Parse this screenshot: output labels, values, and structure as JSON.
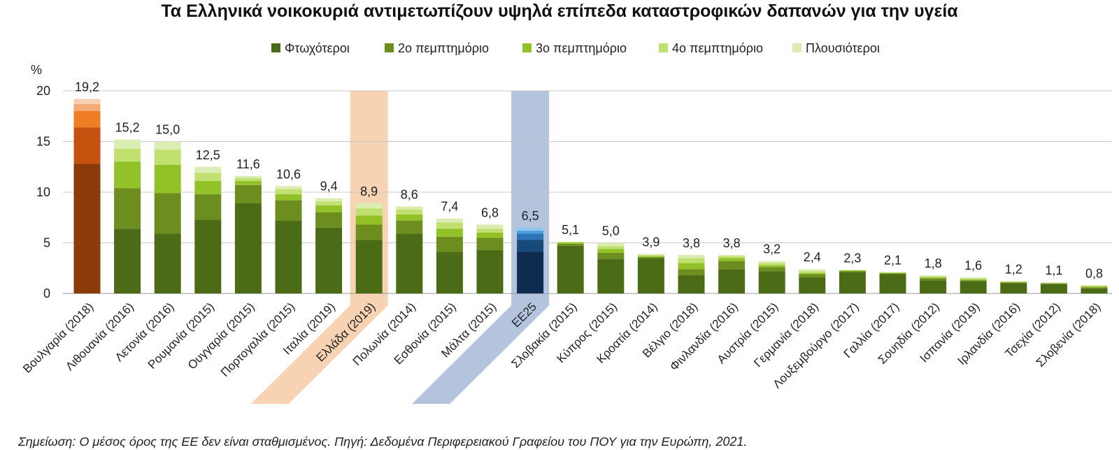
{
  "chart_data": {
    "type": "bar",
    "stacked": true,
    "title": "Τα Ελληνικά νοικοκυριά αντιμετωπίζουν υψηλά επίπεδα καταστροφικών δαπανών για την υγεία",
    "ylabel": "%",
    "ylim": [
      0,
      20
    ],
    "yticks": [
      0,
      5,
      10,
      15,
      20
    ],
    "grid": true,
    "legend_position": "top",
    "categories": [
      "Βουλγαρία (2018)",
      "Λιθουανία (2016)",
      "Λετονία (2016)",
      "Ρουμανία (2015)",
      "Ουγγαρία (2015)",
      "Πορτογαλία (2015)",
      "Ιταλία (2019)",
      "Ελλάδα (2019)",
      "Πολωνία (2014)",
      "Εσθονία (2015)",
      "Μάλτα (2015)",
      "ΕΕ25",
      "Σλοβακία (2015)",
      "Κύπρος (2015)",
      "Κροατία (2014)",
      "Βέλγιο (2018)",
      "Φινλανδία (2016)",
      "Αυστρία (2015)",
      "Γερμανία (2018)",
      "Λουξεμβούργο (2017)",
      "Γαλλία (2017)",
      "Σουηδία (2012)",
      "Ισπανία (2019)",
      "Ιρλανδία (2016)",
      "Τσεχία (2012)",
      "Σλοβενία (2018)"
    ],
    "totals": [
      19.2,
      15.2,
      15.0,
      12.5,
      11.6,
      10.6,
      9.4,
      8.9,
      8.6,
      7.4,
      6.8,
      6.5,
      5.1,
      5.0,
      3.9,
      3.8,
      3.8,
      3.2,
      2.4,
      2.3,
      2.1,
      1.8,
      1.6,
      1.2,
      1.1,
      0.8
    ],
    "total_labels": [
      "19,2",
      "15,2",
      "15,0",
      "12,5",
      "11,6",
      "10,6",
      "9,4",
      "8,9",
      "8,6",
      "7,4",
      "6,8",
      "6,5",
      "5,1",
      "5,0",
      "3,9",
      "3,8",
      "3,8",
      "3,2",
      "2,4",
      "2,3",
      "2,1",
      "1,8",
      "1,6",
      "1,2",
      "1,1",
      "0,8"
    ],
    "series": [
      {
        "name": "Φτωχότεροι",
        "values": [
          12.8,
          6.4,
          5.9,
          7.3,
          8.9,
          7.2,
          6.5,
          5.3,
          5.9,
          4.1,
          4.3,
          4.1,
          4.7,
          3.4,
          3.5,
          1.8,
          2.4,
          2.2,
          1.6,
          2.1,
          1.9,
          1.3,
          1.2,
          1.0,
          0.9,
          0.5
        ]
      },
      {
        "name": "2ο πεμπτημόριο",
        "values": [
          3.6,
          4.0,
          4.0,
          2.5,
          1.8,
          2.0,
          1.5,
          1.5,
          1.3,
          1.5,
          1.2,
          1.2,
          0.2,
          0.6,
          0.1,
          0.6,
          0.8,
          0.4,
          0.3,
          0.1,
          0.1,
          0.2,
          0.1,
          0.1,
          0.1,
          0.1
        ]
      },
      {
        "name": "3ο πεμπτημόριο",
        "values": [
          1.6,
          2.6,
          2.8,
          1.3,
          0.4,
          0.6,
          0.7,
          0.9,
          0.6,
          0.8,
          0.5,
          0.6,
          0.1,
          0.4,
          0.1,
          0.6,
          0.3,
          0.2,
          0.1,
          0.1,
          0.0,
          0.1,
          0.1,
          0.0,
          0.0,
          0.1
        ]
      },
      {
        "name": "4ο πεμπτημόριο",
        "values": [
          0.7,
          1.3,
          1.5,
          0.8,
          0.3,
          0.5,
          0.4,
          0.7,
          0.5,
          0.6,
          0.4,
          0.3,
          0.1,
          0.3,
          0.1,
          0.5,
          0.2,
          0.2,
          0.2,
          0.0,
          0.1,
          0.1,
          0.1,
          0.1,
          0.0,
          0.1
        ]
      },
      {
        "name": "Πλουσιότεροι",
        "values": [
          0.5,
          0.9,
          0.8,
          0.6,
          0.2,
          0.3,
          0.3,
          0.5,
          0.3,
          0.4,
          0.4,
          0.3,
          0.0,
          0.3,
          0.1,
          0.3,
          0.1,
          0.2,
          0.2,
          0.0,
          0.0,
          0.1,
          0.1,
          0.0,
          0.1,
          0.0
        ]
      }
    ],
    "colors": {
      "default": [
        "#4b6b16",
        "#6e8d1f",
        "#92c227",
        "#c0e170",
        "#dcedb4"
      ],
      "Βουλγαρία (2018)": [
        "#8b3a0a",
        "#c5510f",
        "#f07e26",
        "#f5ab77",
        "#f9cfb0"
      ],
      "ΕΕ25": [
        "#0d2c4f",
        "#174a7a",
        "#2c74b5",
        "#4e9ee0",
        "#8cc6f0"
      ]
    },
    "highlight_bands": [
      {
        "category": "Ελλάδα (2019)",
        "color": "#f8d3b3"
      },
      {
        "category": "ΕΕ25",
        "color": "#b5c4dd"
      }
    ]
  },
  "note": "Σημείωση: Ο μέσος όρος της ΕΕ δεν είναι σταθμισμένος. Πηγή: Δεδομένα Περιφερειακού Γραφείου του ΠΟΥ για την Ευρώπη, 2021."
}
